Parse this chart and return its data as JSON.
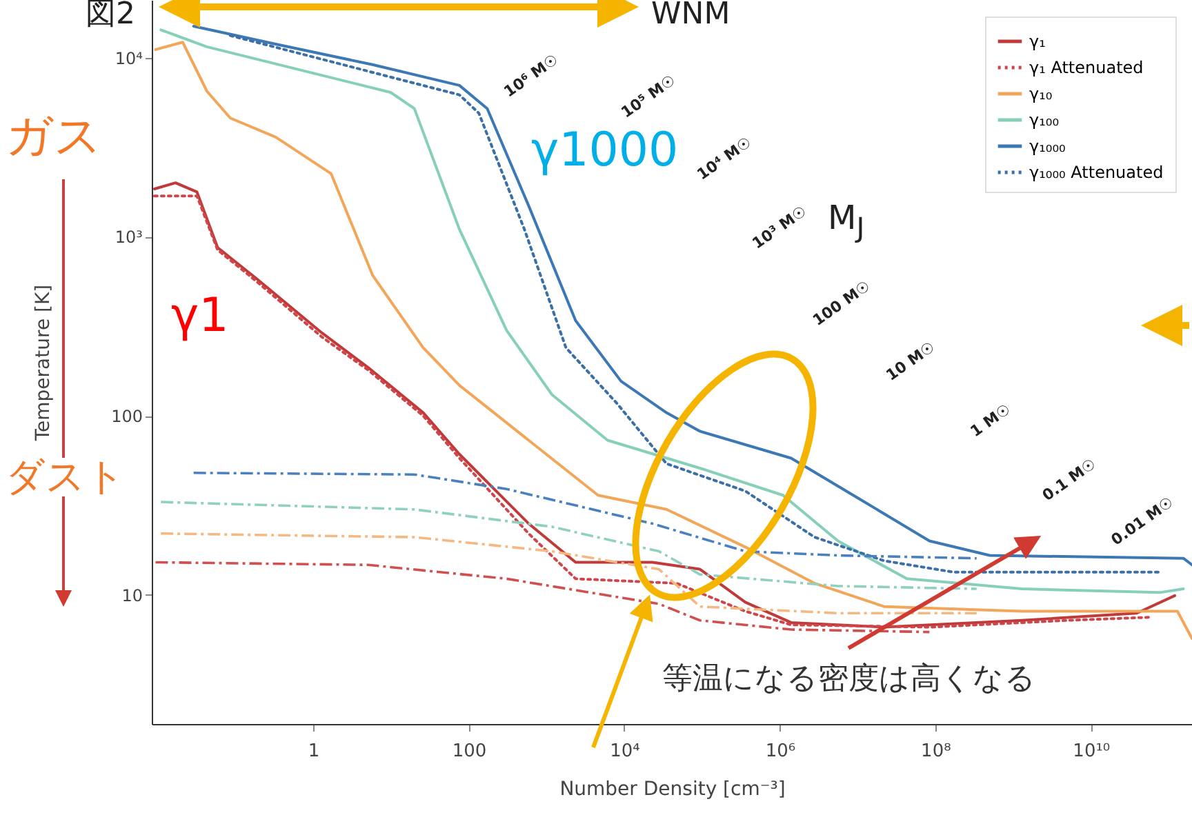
{
  "chart_data": {
    "type": "line",
    "xlabel": "Number Density [cm⁻³]",
    "ylabel": "Temperature [K]",
    "log": "xy",
    "legend": "top right",
    "xlim": [
      0.0084,
      200000000000.0
    ],
    "ylim": [
      1.9,
      21000
    ],
    "xticks": [
      1,
      100,
      {
        "value": 10000,
        "label": "10⁴"
      },
      {
        "value": 1000000,
        "label": "10⁶"
      },
      {
        "value": 100000000,
        "label": "10⁸"
      },
      {
        "value": 10000000000,
        "label": "10¹⁰"
      }
    ],
    "yticks": [
      10,
      100,
      {
        "value": 1000,
        "label": "10³"
      },
      {
        "value": 10000,
        "label": "10⁴"
      }
    ],
    "series": [
      {
        "name": "γ₁",
        "color": "#c03a3a",
        "line_style": "solid",
        "x": [
          0.0091,
          0.017,
          0.032,
          0.059,
          0.19,
          1.3,
          5.1,
          26,
          76,
          590,
          2370,
          23000,
          94000,
          360000,
          1400000,
          22000000,
          1300000000,
          39000000000,
          120000000000
        ],
        "values": [
          1850,
          2000,
          1780,
          870,
          580,
          290,
          186,
          104,
          61,
          25,
          15.2,
          15.2,
          13.9,
          9.1,
          7.0,
          6.6,
          7.2,
          7.9,
          9.9
        ]
      },
      {
        "name": "γ₁ Attenuated",
        "color": "#d0454a",
        "line_style": "dotted",
        "x": [
          0.0091,
          0.032,
          0.059,
          0.19,
          1.3,
          5.1,
          26,
          76,
          590,
          2370,
          47000,
          360000,
          1400000,
          84000000,
          5000000000,
          58000000000
        ],
        "values": [
          1690,
          1690,
          845,
          560,
          275,
          180,
          100,
          58,
          22,
          12.3,
          11.6,
          8.1,
          6.8,
          6.6,
          7.2,
          7.5
        ]
      },
      {
        "name": "γ₁₀",
        "color": "#f2a65a",
        "line_style": "solid",
        "x": [
          0.0094,
          0.021,
          0.043,
          0.086,
          0.33,
          1.7,
          5.8,
          26,
          76,
          590,
          4600,
          35000,
          360000,
          2800000,
          22000000,
          1300000000,
          130000000000,
          200000000000
        ],
        "values": [
          11100,
          12200,
          6500,
          4600,
          3600,
          2250,
          610,
          240,
          148,
          73,
          36,
          30,
          18.5,
          11.6,
          8.6,
          8.1,
          8.1,
          5.7
        ]
      },
      {
        "name": "γ₁₀₀",
        "color": "#86cfb8",
        "line_style": "solid",
        "x": [
          0.011,
          0.043,
          9.9,
          20,
          76,
          307,
          1180,
          6100,
          94000,
          1100000,
          5600000,
          43000000,
          1300000000,
          77000000000,
          155000000000
        ],
        "values": [
          14300,
          11500,
          6400,
          5200,
          1100,
          300,
          131,
          73,
          51,
          36,
          20,
          12.3,
          10.8,
          10.3,
          10.8
        ]
      },
      {
        "name": "γ₁₀₀₀",
        "color": "#3b78b4",
        "line_style": "solid",
        "x": [
          0.029,
          0.33,
          5.8,
          76,
          173,
          590,
          2370,
          9100,
          35000,
          94000,
          1400000,
          11000000,
          84000000,
          500000000,
          155000000000,
          200000000000
        ],
        "values": [
          15000,
          11900,
          9150,
          7000,
          5200,
          1490,
          340,
          156,
          104,
          82,
          58,
          34,
          20,
          16.6,
          16,
          14.7
        ]
      },
      {
        "name": "γ₁₀₀₀ Attenuated",
        "color": "#3b6fa8",
        "line_style": "dotted",
        "x": [
          0.086,
          76,
          135,
          520,
          1780,
          8100,
          35000,
          360000,
          2800000,
          22000000,
          170000000,
          77000000000
        ],
        "values": [
          13300,
          6200,
          4900,
          1100,
          240,
          117,
          54,
          38,
          21,
          15.5,
          13.4,
          13.4
        ]
      },
      {
        "color": "#4a80c0",
        "line_style": "dashed",
        "x": [
          0.029,
          20,
          307,
          23000,
          360000,
          5600000,
          340000000
        ],
        "values": [
          48,
          47,
          39,
          25,
          17.5,
          16.6,
          16
        ]
      },
      {
        "color": "#90d0c0",
        "line_style": "dashed",
        "x": [
          0.011,
          20,
          1180,
          28000,
          94000,
          5600000,
          340000000
        ],
        "values": [
          33,
          30,
          24,
          17.5,
          13,
          11.2,
          10.8
        ]
      },
      {
        "color": "#f4b880",
        "line_style": "dashed",
        "x": [
          0.011,
          20,
          1180,
          28000,
          94000,
          5600000,
          340000000
        ],
        "values": [
          22,
          21,
          17.5,
          13.9,
          8.6,
          7.9,
          7.9
        ]
      },
      {
        "color": "#d05050",
        "line_style": "dashed",
        "x": [
          0.0094,
          5.1,
          307,
          28000,
          94000,
          1400000,
          84000000
        ],
        "values": [
          15.2,
          14.7,
          12.3,
          8.9,
          7.2,
          6.4,
          6.2
        ]
      }
    ],
    "annotations": [
      "図2",
      "WNM",
      "ガス",
      "ダスト",
      "γ1000",
      "γ1",
      "M$_{J}$",
      "等温になる密度は高くなる",
      "10⁶ M☉",
      "10⁵ M☉",
      "10⁴ M☉",
      "10³ M☉",
      "100 M☉",
      "10 M☉",
      "1 M☉",
      "0.1 M☉",
      "0.01 M☉"
    ]
  }
}
